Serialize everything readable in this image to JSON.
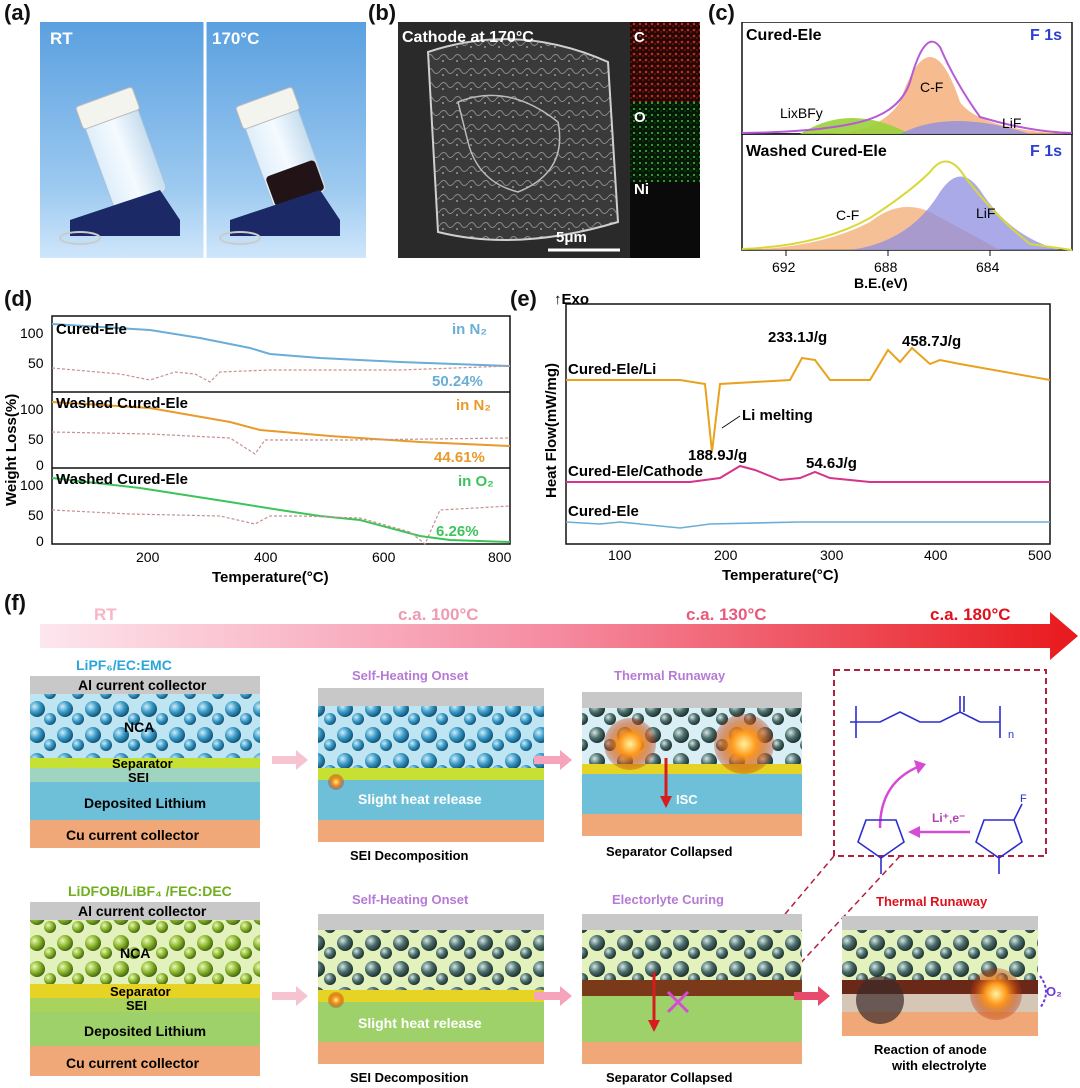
{
  "panel_labels": {
    "a": "(a)",
    "b": "(b)",
    "c": "(c)",
    "d": "(d)",
    "e": "(e)",
    "f": "(f)"
  },
  "panel_a": {
    "left": "RT",
    "right": "170°C"
  },
  "panel_b": {
    "title": "Cathode at 170°C",
    "scale": "5μm",
    "maps": [
      "C",
      "O",
      "Ni"
    ]
  },
  "panel_c": {
    "top_title": "Cured-Ele",
    "top_tag": "F 1s",
    "top_peaks": [
      "LixBFy",
      "C-F",
      "LiF"
    ],
    "bottom_title": "Washed Cured-Ele",
    "bottom_tag": "F 1s",
    "bottom_peaks": [
      "C-F",
      "LiF"
    ],
    "xticks": [
      "692",
      "688",
      "684"
    ],
    "xlabel": "B.E.(eV)"
  },
  "panel_d": {
    "ylabel": "Weight Loss(%)",
    "xlabel": "Temperature(°C)",
    "xticks": [
      "200",
      "400",
      "600",
      "800"
    ],
    "sub": [
      {
        "name": "Cured-Ele",
        "atm": "in N₂",
        "final": "50.24%",
        "color": "#6aaed6",
        "yticks": [
          "100",
          "50"
        ]
      },
      {
        "name": "Washed Cured-Ele",
        "atm": "in N₂",
        "final": "44.61%",
        "color": "#e89a2a",
        "yticks": [
          "100",
          "50",
          "0"
        ]
      },
      {
        "name": "Washed Cured-Ele",
        "atm": "in O₂",
        "final": "6.26%",
        "color": "#3cc45a",
        "yticks": [
          "100",
          "50",
          "0"
        ]
      }
    ]
  },
  "panel_e": {
    "ylabel": "Heat Flow(mW/mg)",
    "exo": "Exo",
    "xlabel": "Temperature(°C)",
    "xticks": [
      "100",
      "200",
      "300",
      "400",
      "500"
    ],
    "curves": [
      "Cured-Ele/Li",
      "Cured-Ele/Cathode",
      "Cured-Ele"
    ],
    "annotations": [
      "233.1J/g",
      "458.7J/g",
      "Li melting",
      "188.9J/g",
      "54.6J/g"
    ]
  },
  "panel_f": {
    "temps": [
      "RT",
      "c.a. 100°C",
      "c.a. 130°C",
      "c.a. 180°C"
    ],
    "row1": {
      "electrolyte": "LiPF₆/EC:EMC",
      "layers": [
        "Al current collector",
        "NCA",
        "Separator",
        "SEI",
        "Deposited Lithium",
        "Cu current collector"
      ],
      "stage_titles": [
        "Self-Heating Onset",
        "Thermal Runaway"
      ],
      "slight": "Slight heat release",
      "isc": "ISC",
      "captions": [
        "SEI Decomposition",
        "Separator Collapsed"
      ]
    },
    "row2": {
      "electrolyte": "LiDFOB/LiBF₄ /FEC:DEC",
      "layers": [
        "Al current collector",
        "NCA",
        "Separator",
        "SEI",
        "Deposited Lithium",
        "Cu current collector"
      ],
      "stage_titles": [
        "Self-Heating Onset",
        "Electorlyte Curing",
        "Thermal Runaway"
      ],
      "slight": "Slight heat release",
      "o2": "O₂",
      "captions": [
        "SEI Decomposition",
        "Separator Collapsed",
        "Reaction of anode with electrolyte"
      ]
    },
    "inset": {
      "reaction": "Li⁺,e⁻",
      "f": "F",
      "n": "n"
    }
  }
}
